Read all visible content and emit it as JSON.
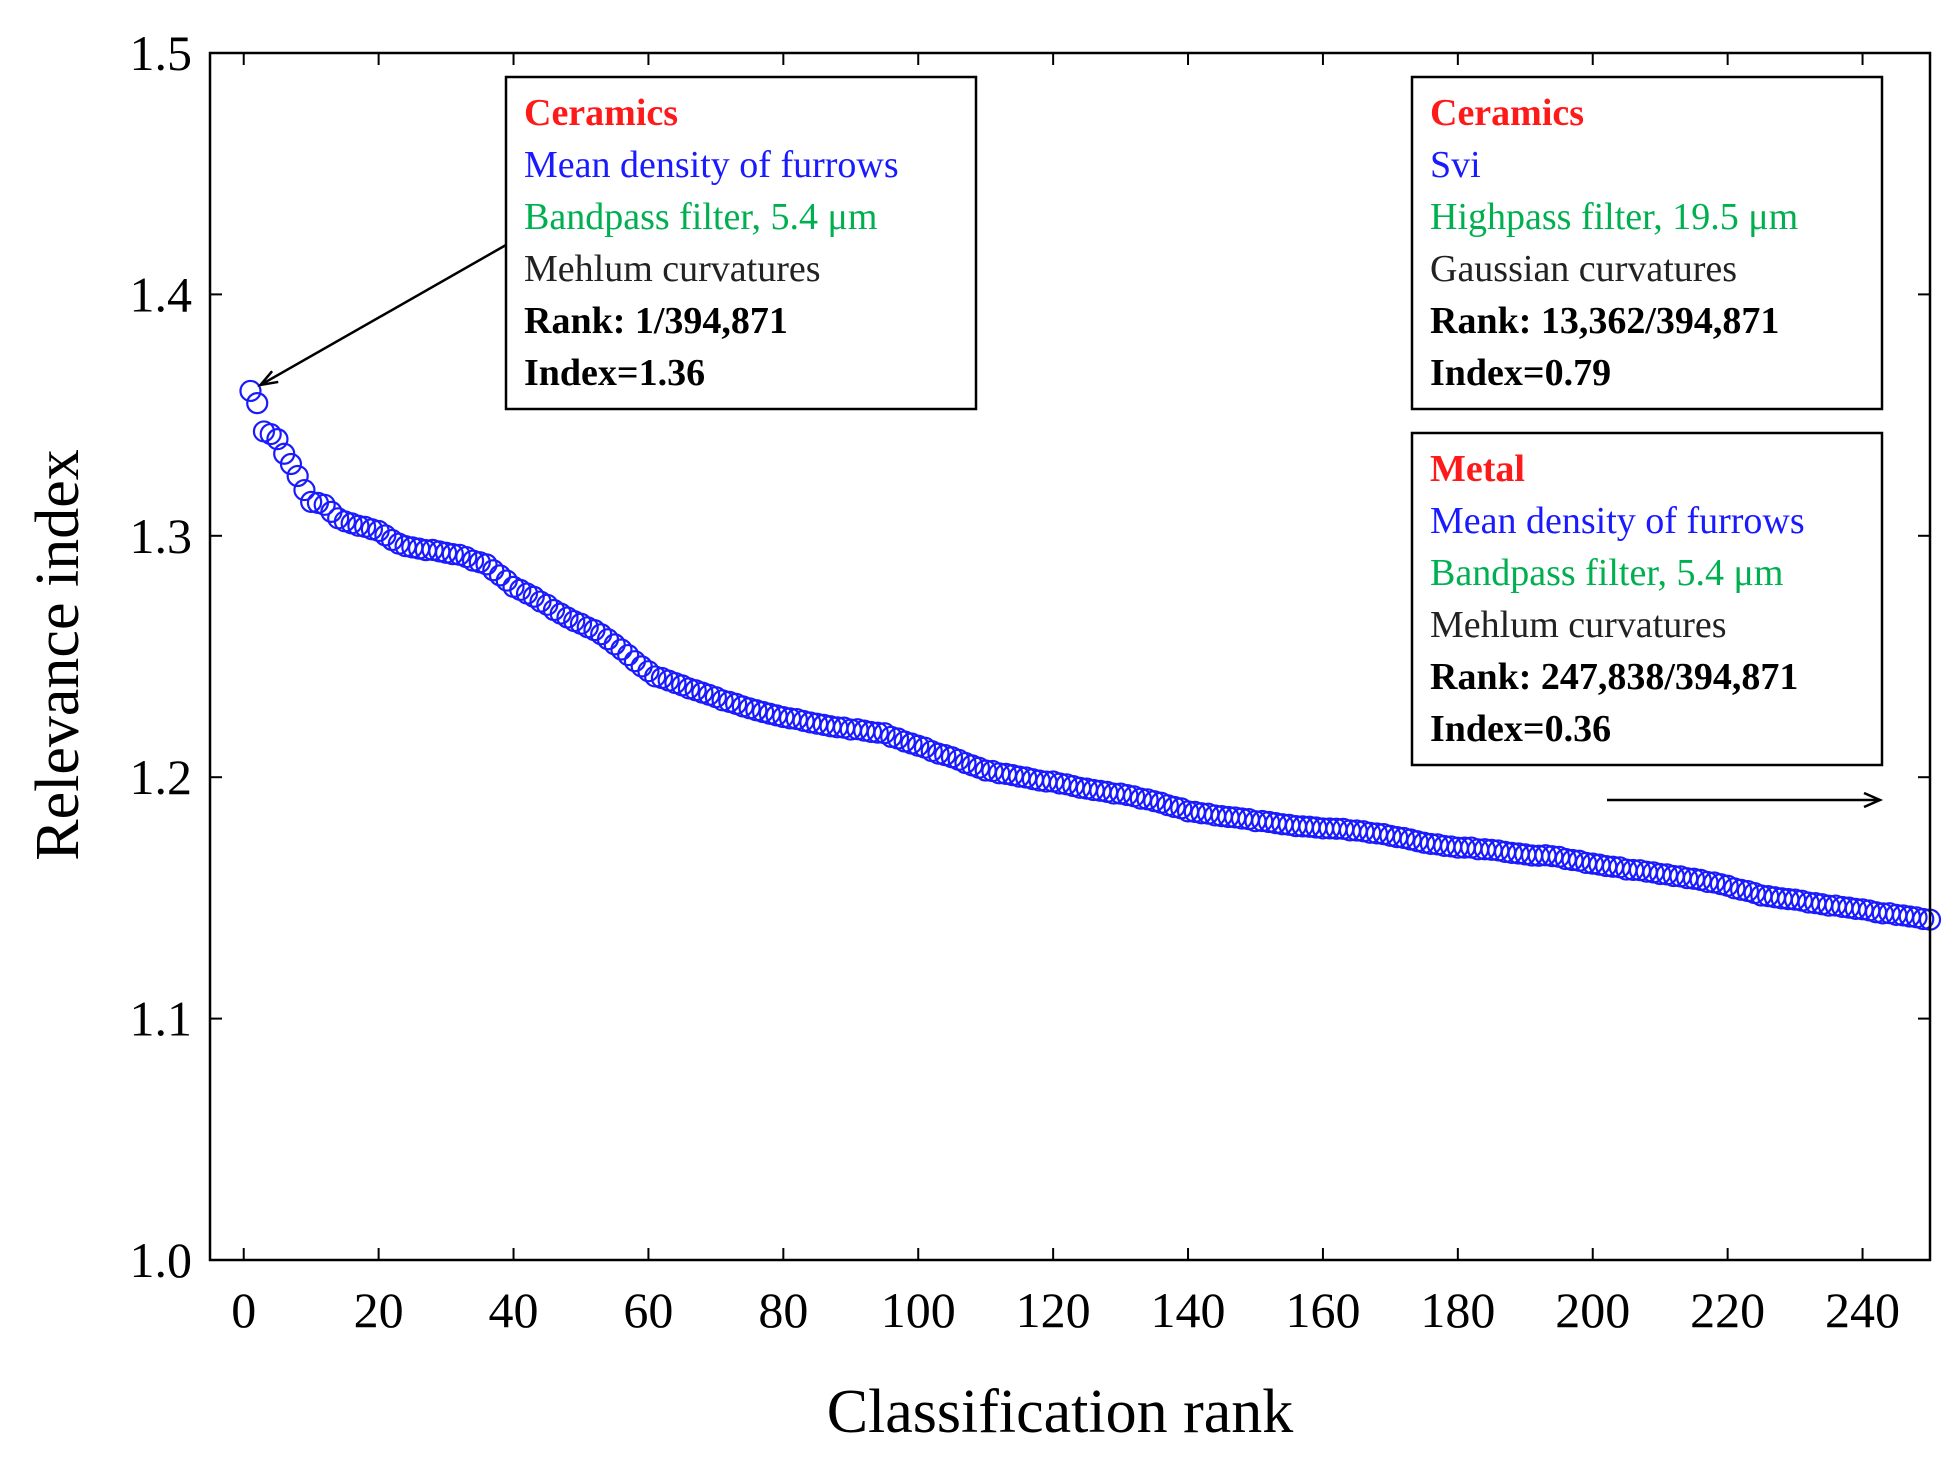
{
  "chart_data": {
    "type": "scatter",
    "title": "",
    "xlabel": "Classification rank",
    "ylabel": "Relevance index",
    "xlim": [
      -5,
      250
    ],
    "ylim": [
      1.0,
      1.5
    ],
    "xticks": [
      0,
      20,
      40,
      60,
      80,
      100,
      120,
      140,
      160,
      180,
      200,
      220,
      240
    ],
    "yticks": [
      1.0,
      1.1,
      1.2,
      1.3,
      1.4,
      1.5
    ],
    "ytick_labels": [
      "1.0",
      "1.1",
      "1.2",
      "1.3",
      "1.4",
      "1.5"
    ],
    "grid": false,
    "marker": "open-circle",
    "colors": {
      "points": "#1a1aff",
      "category": "#ff1a1a",
      "feature": "#1a1aff",
      "filter": "#00b050",
      "text": "#222222",
      "axis": "#000000"
    },
    "curve_anchors": [
      [
        1,
        1.36
      ],
      [
        2,
        1.355
      ],
      [
        3,
        1.343
      ],
      [
        4,
        1.342
      ],
      [
        5,
        1.34
      ],
      [
        6,
        1.334
      ],
      [
        8,
        1.325
      ],
      [
        9,
        1.319
      ],
      [
        10,
        1.314
      ],
      [
        12,
        1.313
      ],
      [
        14,
        1.307
      ],
      [
        16,
        1.305
      ],
      [
        20,
        1.302
      ],
      [
        22,
        1.298
      ],
      [
        25,
        1.295
      ],
      [
        28,
        1.294
      ],
      [
        32,
        1.292
      ],
      [
        36,
        1.288
      ],
      [
        40,
        1.279
      ],
      [
        44,
        1.273
      ],
      [
        48,
        1.266
      ],
      [
        52,
        1.261
      ],
      [
        55,
        1.255
      ],
      [
        58,
        1.248
      ],
      [
        61,
        1.242
      ],
      [
        64,
        1.239
      ],
      [
        68,
        1.235
      ],
      [
        72,
        1.231
      ],
      [
        76,
        1.228
      ],
      [
        80,
        1.225
      ],
      [
        85,
        1.222
      ],
      [
        90,
        1.22
      ],
      [
        95,
        1.218
      ],
      [
        100,
        1.213
      ],
      [
        105,
        1.208
      ],
      [
        110,
        1.203
      ],
      [
        115,
        1.2
      ],
      [
        120,
        1.198
      ],
      [
        125,
        1.195
      ],
      [
        130,
        1.193
      ],
      [
        135,
        1.19
      ],
      [
        140,
        1.186
      ],
      [
        145,
        1.184
      ],
      [
        150,
        1.182
      ],
      [
        155,
        1.18
      ],
      [
        160,
        1.179
      ],
      [
        165,
        1.178
      ],
      [
        170,
        1.176
      ],
      [
        175,
        1.173
      ],
      [
        180,
        1.171
      ],
      [
        185,
        1.17
      ],
      [
        190,
        1.168
      ],
      [
        195,
        1.167
      ],
      [
        200,
        1.164
      ],
      [
        205,
        1.162
      ],
      [
        210,
        1.16
      ],
      [
        215,
        1.158
      ],
      [
        220,
        1.155
      ],
      [
        225,
        1.151
      ],
      [
        230,
        1.149
      ],
      [
        235,
        1.147
      ],
      [
        240,
        1.145
      ],
      [
        245,
        1.143
      ],
      [
        250,
        1.141
      ]
    ],
    "annotations": [
      {
        "id": "top-left",
        "points_to": [
          1,
          1.36
        ],
        "category": "Ceramics",
        "feature": "Mean density of furrows",
        "filter": "Bandpass filter, 5.4 μm",
        "curvature": "Mehlum curvatures",
        "rank": "Rank: 1/394,871",
        "index": "Index=1.36"
      },
      {
        "id": "top-right",
        "category": "Ceramics",
        "feature": "Svi",
        "filter": "Highpass filter, 19.5 μm",
        "curvature": "Gaussian curvatures",
        "rank": "Rank: 13,362/394,871",
        "index": "Index=0.79"
      },
      {
        "id": "bottom-right",
        "category": "Metal",
        "feature": "Mean density of furrows",
        "filter": "Bandpass filter, 5.4 μm",
        "curvature": "Mehlum curvatures",
        "rank": "Rank: 247,838/394,871",
        "index": "Index=0.36",
        "arrow": "right"
      }
    ]
  }
}
